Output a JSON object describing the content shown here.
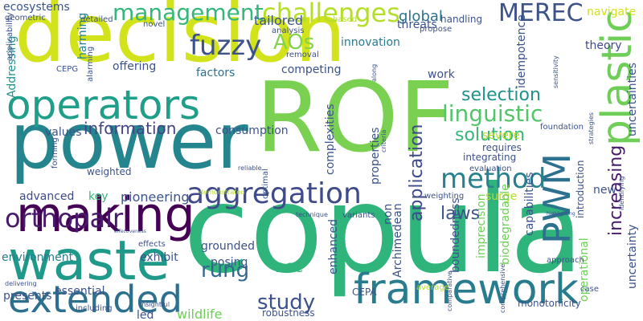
{
  "words": [
    {
      "text": "decision",
      "color": "#d2e21b",
      "vertical": false
    },
    {
      "text": "ROF",
      "color": "#7ad151",
      "vertical": false
    },
    {
      "text": "copula",
      "color": "#2fb47c",
      "vertical": false
    },
    {
      "text": "power",
      "color": "#25858e",
      "vertical": false
    },
    {
      "text": "making",
      "color": "#440154",
      "vertical": false
    },
    {
      "text": "waste",
      "color": "#1f9a8a",
      "vertical": false
    },
    {
      "text": "operators",
      "color": "#1f9e89",
      "vertical": false
    },
    {
      "text": "framework",
      "color": "#287c8e",
      "vertical": false
    },
    {
      "text": "extended",
      "color": "#2d708e",
      "vertical": false
    },
    {
      "text": "plastic",
      "color": "#6ece58",
      "vertical": true
    },
    {
      "text": "aggregation",
      "color": "#3e4a89",
      "vertical": false
    },
    {
      "text": "PWM",
      "color": "#2c728e",
      "vertical": true
    },
    {
      "text": "management",
      "color": "#35b779",
      "vertical": false
    },
    {
      "text": "challenges",
      "color": "#b5de2b",
      "vertical": false
    },
    {
      "text": "MEREC",
      "color": "#3b528b",
      "vertical": false
    },
    {
      "text": "fuzzy",
      "color": "#3b528b",
      "vertical": false
    },
    {
      "text": "method",
      "color": "#26828e",
      "vertical": false
    },
    {
      "text": "orthopair",
      "color": "#481a6c",
      "vertical": false
    },
    {
      "text": "linguistic",
      "color": "#52c569",
      "vertical": false
    },
    {
      "text": "rung",
      "color": "#31688e",
      "vertical": false
    },
    {
      "text": "AOs",
      "color": "#84d44b",
      "vertical": false
    },
    {
      "text": "selection",
      "color": "#21918c",
      "vertical": false
    },
    {
      "text": "information",
      "color": "#414487",
      "vertical": false
    },
    {
      "text": "study",
      "color": "#3b528b",
      "vertical": false
    },
    {
      "text": "solution",
      "color": "#35b779",
      "vertical": false
    },
    {
      "text": "application",
      "color": "#3e4a89",
      "vertical": true
    },
    {
      "text": "increasing",
      "color": "#481a6c",
      "vertical": true
    },
    {
      "text": "laws",
      "color": "#3b528b",
      "vertical": false
    },
    {
      "text": "global",
      "color": "#2c728e",
      "vertical": false
    },
    {
      "text": "ecosystems",
      "color": "#39568c",
      "vertical": false
    },
    {
      "text": "Addressing",
      "color": "#21918c",
      "vertical": true
    },
    {
      "text": "harming",
      "color": "#26828e",
      "vertical": true
    },
    {
      "text": "tailored",
      "color": "#3b528b",
      "vertical": false
    },
    {
      "text": "threats",
      "color": "#3b528b",
      "vertical": false
    },
    {
      "text": "theory",
      "color": "#3e4a89",
      "vertical": false
    },
    {
      "text": "navigate",
      "color": "#d2e21b",
      "vertical": false
    },
    {
      "text": "innovation",
      "color": "#287c8e",
      "vertical": false
    },
    {
      "text": "competing",
      "color": "#3b528b",
      "vertical": false
    },
    {
      "text": "offering",
      "color": "#3b528b",
      "vertical": false
    },
    {
      "text": "factors",
      "color": "#2c728e",
      "vertical": false
    },
    {
      "text": "work",
      "color": "#3b528b",
      "vertical": false
    },
    {
      "text": "handling",
      "color": "#3b528b",
      "vertical": false
    },
    {
      "text": "values",
      "color": "#3b528b",
      "vertical": false
    },
    {
      "text": "consumption",
      "color": "#3b528b",
      "vertical": false
    },
    {
      "text": "requires",
      "color": "#3b528b",
      "vertical": false
    },
    {
      "text": "severe",
      "color": "#b5de2b",
      "vertical": false
    },
    {
      "text": "surge",
      "color": "#b5de2b",
      "vertical": false
    },
    {
      "text": "new",
      "color": "#3b528b",
      "vertical": false
    },
    {
      "text": "advanced",
      "color": "#3e4a89",
      "vertical": false
    },
    {
      "text": "key",
      "color": "#35b779",
      "vertical": false
    },
    {
      "text": "pioneering",
      "color": "#3b528b",
      "vertical": false
    },
    {
      "text": "environment",
      "color": "#287c8e",
      "vertical": false
    },
    {
      "text": "exhibit",
      "color": "#3b528b",
      "vertical": false
    },
    {
      "text": "grounded",
      "color": "#3b528b",
      "vertical": false
    },
    {
      "text": "posing",
      "color": "#3b528b",
      "vertical": false
    },
    {
      "text": "ACC",
      "color": "#2fb47c",
      "vertical": false
    },
    {
      "text": "enhanced",
      "color": "#3b528b",
      "vertical": true
    },
    {
      "text": "essential",
      "color": "#3b528b",
      "vertical": false
    },
    {
      "text": "presents",
      "color": "#3b528b",
      "vertical": false
    },
    {
      "text": "led",
      "color": "#3b528b",
      "vertical": false
    },
    {
      "text": "wildlife",
      "color": "#6ece58",
      "vertical": false
    },
    {
      "text": "robustness",
      "color": "#3b528b",
      "vertical": false
    },
    {
      "text": "CEPA",
      "color": "#3b528b",
      "vertical": false
    },
    {
      "text": "Archimedean",
      "color": "#3b528b",
      "vertical": true
    },
    {
      "text": "boundedness",
      "color": "#3b528b",
      "vertical": true
    },
    {
      "text": "imprecision",
      "color": "#6ece58",
      "vertical": true
    },
    {
      "text": "biodegradable",
      "color": "#6ece58",
      "vertical": true
    },
    {
      "text": "capabilities",
      "color": "#3b528b",
      "vertical": true
    },
    {
      "text": "operational",
      "color": "#6ece58",
      "vertical": true
    },
    {
      "text": "uncertainty",
      "color": "#3b528b",
      "vertical": true
    },
    {
      "text": "uncertainties",
      "color": "#3b528b",
      "vertical": true
    },
    {
      "text": "properties",
      "color": "#3b528b",
      "vertical": true
    },
    {
      "text": "complexities",
      "color": "#3b528b",
      "vertical": true
    },
    {
      "text": "non",
      "color": "#3b528b",
      "vertical": true
    },
    {
      "text": "idempotence",
      "color": "#3b528b",
      "vertical": true
    },
    {
      "text": "introduction",
      "color": "#3b528b",
      "vertical": true
    },
    {
      "text": "geometric",
      "color": "#3b528b",
      "vertical": false
    },
    {
      "text": "detailed",
      "color": "#3b528b",
      "vertical": false
    },
    {
      "text": "novel",
      "color": "#3b528b",
      "vertical": false
    },
    {
      "text": "analysis",
      "color": "#3b528b",
      "vertical": false
    },
    {
      "text": "removal",
      "color": "#3b528b",
      "vertical": false
    },
    {
      "text": "based",
      "color": "#b5de2b",
      "vertical": false
    },
    {
      "text": "propose",
      "color": "#3b528b",
      "vertical": false
    },
    {
      "text": "alarming",
      "color": "#3b528b",
      "vertical": true
    },
    {
      "text": "applicability",
      "color": "#3b528b",
      "vertical": true
    },
    {
      "text": "CEPG",
      "color": "#3b528b",
      "vertical": false
    },
    {
      "text": "along",
      "color": "#3b528b",
      "vertical": true
    },
    {
      "text": "sensitivity",
      "color": "#3b528b",
      "vertical": true
    },
    {
      "text": "integrating",
      "color": "#3b528b",
      "vertical": false
    },
    {
      "text": "foundation",
      "color": "#3b528b",
      "vertical": false
    },
    {
      "text": "strategies",
      "color": "#3b528b",
      "vertical": true
    },
    {
      "text": "evaluation",
      "color": "#3b528b",
      "vertical": false
    },
    {
      "text": "weighted",
      "color": "#3b528b",
      "vertical": false
    },
    {
      "text": "reliable",
      "color": "#3b528b",
      "vertical": false
    },
    {
      "text": "optimal",
      "color": "#3b528b",
      "vertical": true
    },
    {
      "text": "criteria",
      "color": "#3b528b",
      "vertical": true
    },
    {
      "text": "forming",
      "color": "#3b528b",
      "vertical": true
    },
    {
      "text": "demonstrated",
      "color": "#b5de2b",
      "vertical": false
    },
    {
      "text": "weighting",
      "color": "#3b528b",
      "vertical": false
    },
    {
      "text": "identifying",
      "color": "#3b528b",
      "vertical": true
    },
    {
      "text": "technique",
      "color": "#3b528b",
      "vertical": false
    },
    {
      "text": "variants",
      "color": "#3b528b",
      "vertical": false
    },
    {
      "text": "highlighting",
      "color": "#3b528b",
      "vertical": false
    },
    {
      "text": "effectiveness",
      "color": "#3b528b",
      "vertical": false
    },
    {
      "text": "effects",
      "color": "#3b528b",
      "vertical": false
    },
    {
      "text": "approach",
      "color": "#3b528b",
      "vertical": false
    },
    {
      "text": "comparative",
      "color": "#3b528b",
      "vertical": true
    },
    {
      "text": "comprehensive",
      "color": "#3b528b",
      "vertical": true
    },
    {
      "text": "delivering",
      "color": "#3b528b",
      "vertical": false
    },
    {
      "text": "insightful",
      "color": "#3b528b",
      "vertical": false
    },
    {
      "text": "including",
      "color": "#3b528b",
      "vertical": false
    },
    {
      "text": "average",
      "color": "#b5de2b",
      "vertical": false
    },
    {
      "text": "monotonicity",
      "color": "#3b528b",
      "vertical": false
    },
    {
      "text": "case",
      "color": "#3b528b",
      "vertical": false
    }
  ]
}
